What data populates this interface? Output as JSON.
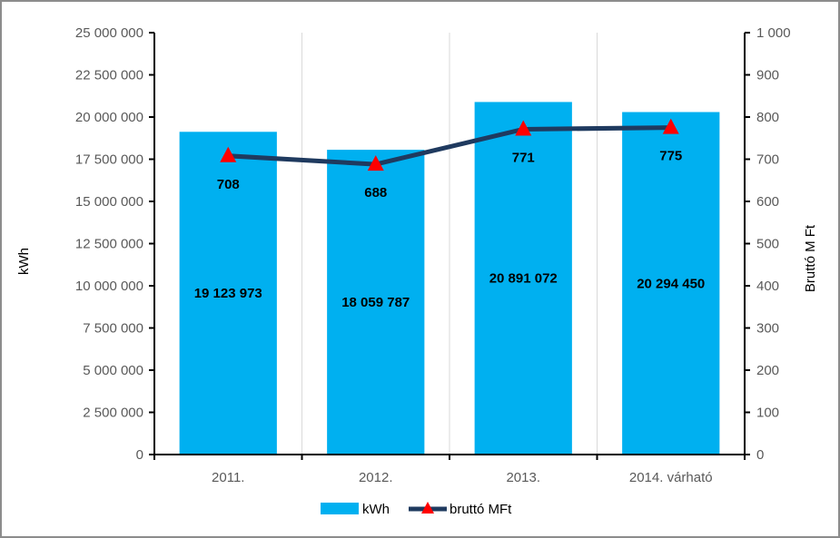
{
  "chart_data": {
    "type": "bar+line",
    "categories": [
      "2011.",
      "2012.",
      "2013.",
      "2014. várható"
    ],
    "series": [
      {
        "name": "kWh",
        "kind": "bar",
        "axis": "left",
        "color": "#00b0f0",
        "values": [
          19123973,
          18059787,
          20891072,
          20294450
        ],
        "labels": [
          "19 123 973",
          "18 059 787",
          "20 891 072",
          "20 294 450"
        ]
      },
      {
        "name": "bruttó MFt",
        "kind": "line",
        "axis": "right",
        "line_color": "#1f3a5f",
        "marker_color": "#ff0000",
        "marker": "triangle",
        "values": [
          708,
          688,
          771,
          775
        ],
        "labels": [
          "708",
          "688",
          "771",
          "775"
        ]
      }
    ],
    "y_left": {
      "label": "kWh",
      "ylim": [
        0,
        25000000
      ],
      "ticks": [
        0,
        2500000,
        5000000,
        7500000,
        10000000,
        12500000,
        15000000,
        17500000,
        20000000,
        22500000,
        25000000
      ],
      "tick_labels": [
        "0",
        "2 500 000",
        "5 000 000",
        "7 500 000",
        "10 000 000",
        "12 500 000",
        "15 000 000",
        "17 500 000",
        "20 000 000",
        "22 500 000",
        "25 000 000"
      ]
    },
    "y_right": {
      "label": "Bruttó M Ft",
      "ylim": [
        0,
        1000
      ],
      "ticks": [
        0,
        100,
        200,
        300,
        400,
        500,
        600,
        700,
        800,
        900,
        1000
      ],
      "tick_labels": [
        "0",
        "100",
        "200",
        "300",
        "400",
        "500",
        "600",
        "700",
        "800",
        "900",
        "1 000"
      ]
    },
    "grid": "vertical",
    "legend_position": "bottom"
  }
}
